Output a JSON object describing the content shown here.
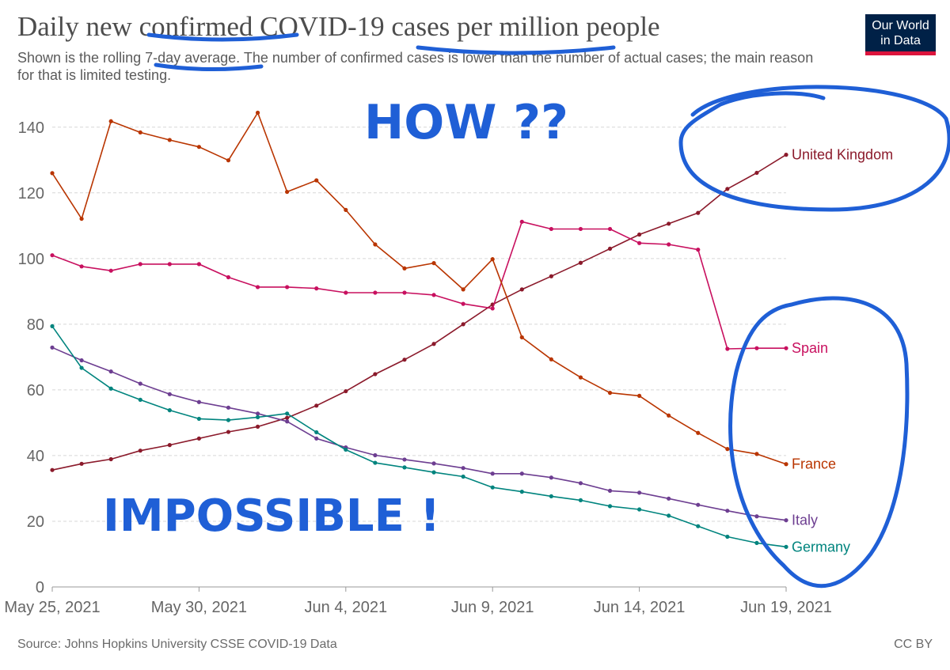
{
  "header": {
    "title": "Daily new confirmed COVID-19 cases per million people",
    "subtitle": "Shown is the rolling 7-day average. The number of confirmed cases is lower than the number of actual cases; the main reason for that is limited testing."
  },
  "logo": {
    "line1": "Our World",
    "line2": "in Data"
  },
  "footer": {
    "source": "Source: Johns Hopkins University CSSE COVID-19 Data",
    "license": "CC BY"
  },
  "annotations": {
    "top": "HOW ??",
    "bottom": "IMPOSSIBLE !"
  },
  "colors": {
    "annotation": "#1f5fd6",
    "logo_bg": "#002147",
    "logo_bar": "#dc143c"
  },
  "chart_data": {
    "type": "line",
    "title": "Daily new confirmed COVID-19 cases per million people",
    "x_start": "May 25, 2021",
    "x": [
      "May 25, 2021",
      "May 26, 2021",
      "May 27, 2021",
      "May 28, 2021",
      "May 29, 2021",
      "May 30, 2021",
      "May 31, 2021",
      "Jun 1, 2021",
      "Jun 2, 2021",
      "Jun 3, 2021",
      "Jun 4, 2021",
      "Jun 5, 2021",
      "Jun 6, 2021",
      "Jun 7, 2021",
      "Jun 8, 2021",
      "Jun 9, 2021",
      "Jun 10, 2021",
      "Jun 11, 2021",
      "Jun 12, 2021",
      "Jun 13, 2021",
      "Jun 14, 2021",
      "Jun 15, 2021",
      "Jun 16, 2021",
      "Jun 17, 2021",
      "Jun 18, 2021",
      "Jun 19, 2021"
    ],
    "x_ticks": [
      "May 25, 2021",
      "May 30, 2021",
      "Jun 4, 2021",
      "Jun 9, 2021",
      "Jun 14, 2021",
      "Jun 19, 2021"
    ],
    "ylim": [
      0,
      145
    ],
    "y_ticks": [
      0,
      20,
      40,
      60,
      80,
      100,
      120,
      140
    ],
    "grid": true,
    "legend": "inline-right",
    "series": [
      {
        "name": "United Kingdom",
        "color": "#8b1a2b",
        "values": [
          35.6,
          37.5,
          38.9,
          41.5,
          43.2,
          45.2,
          47.2,
          48.8,
          51.5,
          55.2,
          59.6,
          64.8,
          69.2,
          74.0,
          80.0,
          86.0,
          90.6,
          94.6,
          98.7,
          103.0,
          107.3,
          110.6,
          113.9,
          121.2,
          126.1,
          131.6
        ]
      },
      {
        "name": "Spain",
        "color": "#c8105f",
        "values": [
          101.0,
          97.6,
          96.3,
          98.3,
          98.3,
          98.3,
          94.3,
          91.3,
          91.3,
          90.9,
          89.6,
          89.6,
          89.6,
          88.9,
          86.2,
          84.8,
          111.2,
          109.0,
          109.0,
          109.0,
          104.7,
          104.3,
          102.7,
          72.5,
          72.7,
          72.7
        ]
      },
      {
        "name": "France",
        "color": "#b93500",
        "values": [
          126.0,
          112.1,
          141.8,
          138.4,
          136.1,
          134.0,
          129.9,
          144.4,
          120.3,
          123.8,
          114.8,
          104.3,
          97.0,
          98.6,
          90.6,
          99.8,
          76.0,
          69.3,
          63.8,
          59.1,
          58.2,
          52.2,
          46.9,
          42.0,
          40.5,
          37.4
        ]
      },
      {
        "name": "Italy",
        "color": "#6d3e91",
        "values": [
          72.9,
          69.0,
          65.6,
          61.9,
          58.7,
          56.3,
          54.6,
          52.8,
          50.4,
          45.2,
          42.5,
          40.1,
          38.8,
          37.6,
          36.2,
          34.5,
          34.5,
          33.3,
          31.6,
          29.3,
          28.7,
          26.9,
          25.0,
          23.2,
          21.5,
          20.3
        ]
      },
      {
        "name": "Germany",
        "color": "#00847e",
        "values": [
          79.4,
          66.7,
          60.4,
          57.0,
          53.8,
          51.2,
          50.8,
          51.7,
          52.8,
          47.1,
          41.8,
          37.8,
          36.4,
          34.9,
          33.6,
          30.3,
          29.0,
          27.6,
          26.4,
          24.6,
          23.6,
          21.7,
          18.5,
          15.3,
          13.4,
          12.2
        ]
      }
    ]
  }
}
